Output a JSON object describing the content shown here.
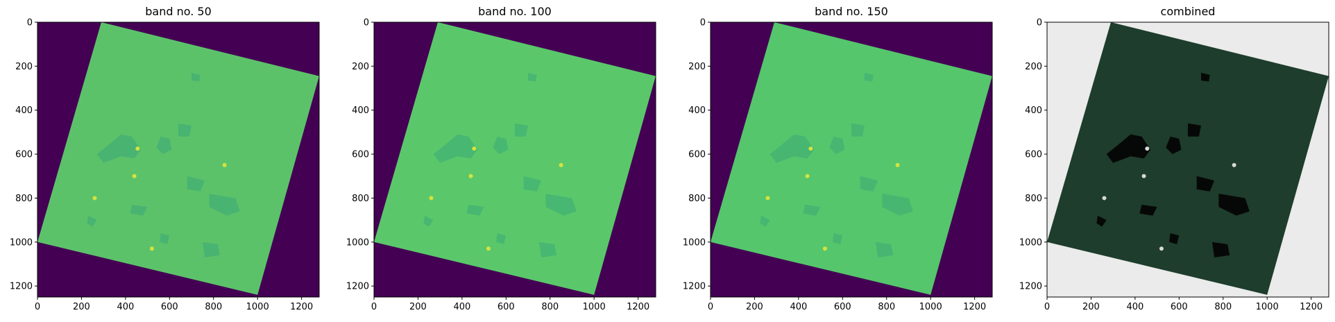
{
  "figure": {
    "panels": [
      {
        "title": "band no. 50"
      },
      {
        "title": "band no. 100"
      },
      {
        "title": "band no. 150"
      },
      {
        "title": "combined"
      }
    ]
  },
  "colors": {
    "background": "#440154",
    "combined_background": "#ebebeb",
    "scene_fill_band50": "#5cc26a",
    "scene_fill_band100": "#5ac86a",
    "scene_fill_band150": "#55c66c",
    "scene_fill_combined": "#1e3d2c",
    "water_band": "#3aaa76",
    "water_combined": "#050505",
    "hotspot": "#d6e23c"
  },
  "chart_data": [
    {
      "type": "heatmap",
      "title": "band no. 50",
      "xlim": [
        0,
        1280
      ],
      "ylim": [
        1250,
        0
      ],
      "xticks": [
        0,
        200,
        400,
        600,
        800,
        1000,
        1200
      ],
      "yticks": [
        0,
        200,
        400,
        600,
        800,
        1000,
        1200
      ],
      "scene_corners": [
        [
          290,
          0
        ],
        [
          1280,
          245
        ],
        [
          1000,
          1240
        ],
        [
          0,
          1000
        ]
      ]
    },
    {
      "type": "heatmap",
      "title": "band no. 100",
      "xlim": [
        0,
        1280
      ],
      "ylim": [
        1250,
        0
      ],
      "xticks": [
        0,
        200,
        400,
        600,
        800,
        1000,
        1200
      ],
      "yticks": [
        0,
        200,
        400,
        600,
        800,
        1000,
        1200
      ],
      "scene_corners": [
        [
          290,
          0
        ],
        [
          1280,
          245
        ],
        [
          1000,
          1240
        ],
        [
          0,
          1000
        ]
      ]
    },
    {
      "type": "heatmap",
      "title": "band no. 150",
      "xlim": [
        0,
        1280
      ],
      "ylim": [
        1250,
        0
      ],
      "xticks": [
        0,
        200,
        400,
        600,
        800,
        1000,
        1200
      ],
      "yticks": [
        0,
        200,
        400,
        600,
        800,
        1000,
        1200
      ],
      "scene_corners": [
        [
          290,
          0
        ],
        [
          1280,
          245
        ],
        [
          1000,
          1240
        ],
        [
          0,
          1000
        ]
      ]
    },
    {
      "type": "heatmap",
      "title": "combined",
      "xlim": [
        0,
        1280
      ],
      "ylim": [
        1250,
        0
      ],
      "xticks": [
        0,
        200,
        400,
        600,
        800,
        1000,
        1200
      ],
      "yticks": [
        0,
        200,
        400,
        600,
        800,
        1000,
        1200
      ],
      "scene_corners": [
        [
          290,
          0
        ],
        [
          1280,
          245
        ],
        [
          1000,
          1240
        ],
        [
          0,
          1000
        ]
      ]
    }
  ]
}
